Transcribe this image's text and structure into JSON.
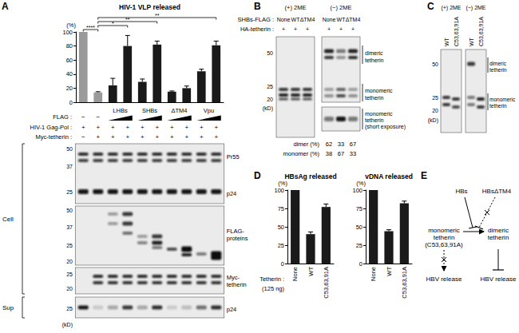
{
  "panel_labels": [
    "A",
    "B",
    "C",
    "D",
    "E"
  ],
  "chart_data": [
    {
      "type": "bar",
      "title": "HIV-1 VLP released",
      "ylabel": "(%)",
      "categories": [
        null,
        null,
        null,
        null,
        null,
        null,
        null,
        null,
        null,
        null
      ],
      "values": [
        100,
        14,
        24,
        80,
        29,
        82,
        15,
        20,
        44,
        81
      ],
      "errors": [
        1,
        1,
        10,
        15,
        4,
        5,
        1,
        3,
        3,
        6
      ],
      "colors": [
        "#9a9a9a",
        "#9a9a9a",
        "#1a1a1a",
        "#1a1a1a",
        "#1a1a1a",
        "#1a1a1a",
        "#1a1a1a",
        "#1a1a1a",
        "#1a1a1a",
        "#1a1a1a"
      ],
      "ylim": [
        0,
        100
      ],
      "yticks": [
        0,
        20,
        40,
        60,
        80,
        100
      ],
      "grid": false,
      "significance": [
        {
          "label": "****",
          "from": 0,
          "to": 1
        },
        {
          "label": "*",
          "from": 1,
          "to": 3
        },
        {
          "label": "**",
          "from": 1,
          "to": 5
        },
        {
          "label": "**",
          "from": 1,
          "to": 9
        }
      ]
    },
    {
      "type": "bar",
      "title": "HBsAg released",
      "ylabel": "(%)",
      "xlabel": "Tetherin :",
      "xlabel_note": "(125 ng)",
      "categories": [
        "None",
        "WT",
        "C53,63,91A"
      ],
      "values": [
        100,
        40,
        77
      ],
      "errors": [
        1,
        3,
        4
      ],
      "color": "#1a1a1a",
      "ylim": [
        0,
        100
      ],
      "yticks": [
        0,
        25,
        50,
        75,
        100
      ],
      "grid": false
    },
    {
      "type": "bar",
      "title": "vDNA released",
      "ylabel": "(%)",
      "categories": [
        "None",
        "WT",
        "C53,63,91A"
      ],
      "values": [
        100,
        44,
        82
      ],
      "errors": [
        1,
        2,
        3
      ],
      "color": "#1a1a1a",
      "ylim": [
        0,
        100
      ],
      "yticks": [
        0,
        25,
        50,
        75,
        100
      ],
      "grid": false
    }
  ],
  "panel_A": {
    "lane_rows": [
      {
        "label": "FLAG :",
        "marks": [
          "−",
          "−",
          null,
          null,
          null,
          null,
          null,
          null,
          null,
          null
        ],
        "groups": [
          {
            "text": "LHBs",
            "lanes": [
              2,
              3
            ]
          },
          {
            "text": "SHBs",
            "lanes": [
              4,
              5
            ]
          },
          {
            "text": "ΔTM4",
            "lanes": [
              6,
              7
            ]
          },
          {
            "text": "Vpu",
            "lanes": [
              8,
              9
            ]
          }
        ]
      },
      {
        "label": "HIV-1 Gag-Pol :",
        "marks": [
          "+",
          "+",
          "+",
          "+",
          "+",
          "+",
          "+",
          "+",
          "+",
          "+"
        ]
      },
      {
        "label": "Myc-tetherin :",
        "marks": [
          "−",
          "+",
          "+",
          "+",
          "+",
          "+",
          "+",
          "+",
          "+",
          "+"
        ]
      }
    ],
    "fractions": [
      {
        "label": "Cell",
        "blots": [
          {
            "mw": [
              "50",
              "37",
              "25"
            ],
            "labels": [
              [
                "Pr55"
              ],
              [
                "p24"
              ]
            ]
          },
          {
            "mw": [
              "50",
              "37",
              "25",
              "20"
            ],
            "labels": [
              [
                "FLAG-",
                "proteins"
              ]
            ]
          },
          {
            "mw": [
              "25",
              "20"
            ],
            "labels": [
              [
                "Myc-",
                "tetherin"
              ]
            ]
          }
        ]
      },
      {
        "label": "Sup",
        "blots": [
          {
            "mw": [
              "25"
            ],
            "labels": [
              [
                "p24"
              ]
            ]
          }
        ]
      }
    ],
    "mw_unit": "(kD)"
  },
  "panel_B": {
    "headers": [
      "(+) 2ME",
      "(−) 2ME"
    ],
    "lane_rows": [
      {
        "label": "SHBs-FLAG :",
        "marks": [
          "None",
          "WT",
          "ΔTM4"
        ]
      },
      {
        "label": "HA-tetherin :",
        "marks": [
          "+",
          "+",
          "+"
        ]
      }
    ],
    "mw": [
      "50",
      "25",
      "20"
    ],
    "mw_unit": "(kD)",
    "band_labels": [
      [
        "dimeric",
        "tetherin"
      ],
      [
        "monomeric",
        "tetherin"
      ],
      [
        "monomeric",
        "tetherin",
        "(short exposure)"
      ]
    ],
    "quantification": [
      {
        "label": "dimer (%)",
        "values": [
          62,
          33,
          67
        ]
      },
      {
        "label": "monomer (%)",
        "values": [
          38,
          67,
          33
        ]
      }
    ]
  },
  "panel_C": {
    "headers": [
      "(+) 2ME",
      "(−) 2ME"
    ],
    "lanes": [
      "WT",
      "C53,63,91A"
    ],
    "mw": [
      "50",
      "25",
      "20"
    ],
    "mw_unit": "(kD)",
    "band_labels": [
      [
        "dimeric",
        "tetherin"
      ],
      [
        "monomeric",
        "tetherin"
      ]
    ]
  },
  "panel_E": {
    "inhibitors": [
      "HBs",
      "HBsΔTM4"
    ],
    "monomer": [
      "monomeric",
      "tetherin",
      "(C53,63,91A)"
    ],
    "dimer": [
      "dimeric",
      "tetherin"
    ],
    "outcomes": [
      "HBV release",
      "HBV release"
    ]
  }
}
